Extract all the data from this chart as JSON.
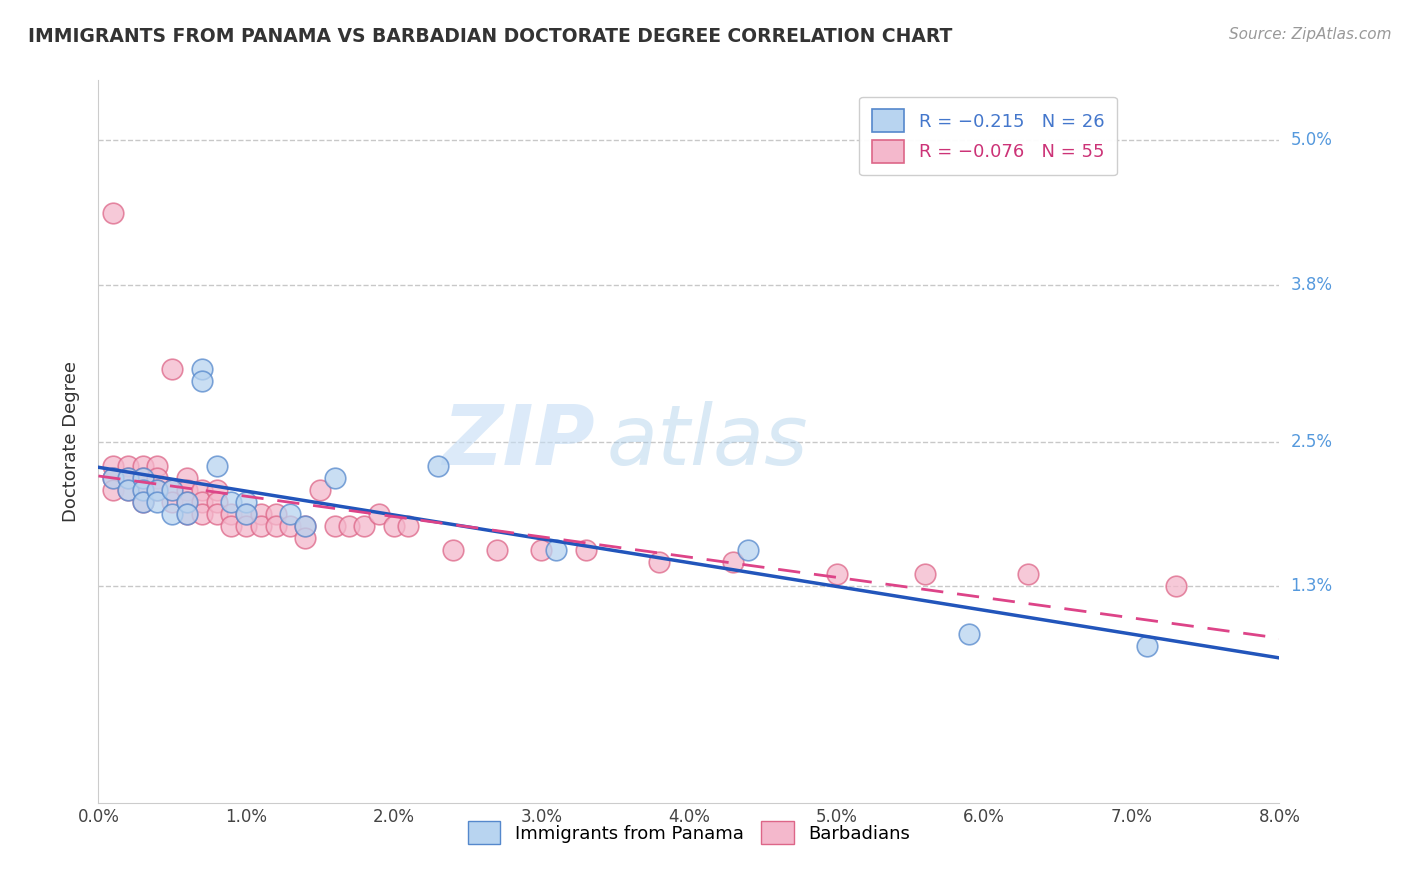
{
  "title": "IMMIGRANTS FROM PANAMA VS BARBADIAN DOCTORATE DEGREE CORRELATION CHART",
  "source": "Source: ZipAtlas.com",
  "ylabel": "Doctorate Degree",
  "xmin": 0.0,
  "xmax": 0.08,
  "ymin": -0.005,
  "ymax": 0.055,
  "ytick_labels": [
    "1.3%",
    "2.5%",
    "3.8%",
    "5.0%"
  ],
  "panama_color": "#b8d4f0",
  "barbadian_color": "#f4b8cc",
  "panama_edge_color": "#5588cc",
  "barbadian_edge_color": "#dd6688",
  "panama_line_color": "#2255bb",
  "barbadian_line_color": "#dd4488",
  "panama_points": [
    [
      0.001,
      0.022
    ],
    [
      0.002,
      0.022
    ],
    [
      0.002,
      0.021
    ],
    [
      0.003,
      0.022
    ],
    [
      0.003,
      0.021
    ],
    [
      0.003,
      0.02
    ],
    [
      0.004,
      0.021
    ],
    [
      0.004,
      0.02
    ],
    [
      0.005,
      0.021
    ],
    [
      0.005,
      0.019
    ],
    [
      0.006,
      0.02
    ],
    [
      0.006,
      0.019
    ],
    [
      0.007,
      0.031
    ],
    [
      0.007,
      0.03
    ],
    [
      0.008,
      0.023
    ],
    [
      0.009,
      0.02
    ],
    [
      0.01,
      0.02
    ],
    [
      0.01,
      0.019
    ],
    [
      0.013,
      0.019
    ],
    [
      0.014,
      0.018
    ],
    [
      0.016,
      0.022
    ],
    [
      0.023,
      0.023
    ],
    [
      0.031,
      0.016
    ],
    [
      0.044,
      0.016
    ],
    [
      0.059,
      0.009
    ],
    [
      0.071,
      0.008
    ]
  ],
  "barbadian_points": [
    [
      0.001,
      0.044
    ],
    [
      0.001,
      0.023
    ],
    [
      0.001,
      0.022
    ],
    [
      0.001,
      0.021
    ],
    [
      0.002,
      0.023
    ],
    [
      0.002,
      0.022
    ],
    [
      0.002,
      0.021
    ],
    [
      0.003,
      0.023
    ],
    [
      0.003,
      0.022
    ],
    [
      0.003,
      0.021
    ],
    [
      0.003,
      0.02
    ],
    [
      0.004,
      0.023
    ],
    [
      0.004,
      0.022
    ],
    [
      0.004,
      0.021
    ],
    [
      0.005,
      0.031
    ],
    [
      0.005,
      0.021
    ],
    [
      0.005,
      0.02
    ],
    [
      0.006,
      0.022
    ],
    [
      0.006,
      0.021
    ],
    [
      0.006,
      0.02
    ],
    [
      0.006,
      0.019
    ],
    [
      0.007,
      0.021
    ],
    [
      0.007,
      0.02
    ],
    [
      0.007,
      0.019
    ],
    [
      0.008,
      0.021
    ],
    [
      0.008,
      0.02
    ],
    [
      0.008,
      0.019
    ],
    [
      0.009,
      0.019
    ],
    [
      0.009,
      0.018
    ],
    [
      0.01,
      0.019
    ],
    [
      0.01,
      0.018
    ],
    [
      0.011,
      0.019
    ],
    [
      0.011,
      0.018
    ],
    [
      0.012,
      0.019
    ],
    [
      0.012,
      0.018
    ],
    [
      0.013,
      0.018
    ],
    [
      0.014,
      0.018
    ],
    [
      0.014,
      0.017
    ],
    [
      0.015,
      0.021
    ],
    [
      0.016,
      0.018
    ],
    [
      0.017,
      0.018
    ],
    [
      0.018,
      0.018
    ],
    [
      0.019,
      0.019
    ],
    [
      0.02,
      0.018
    ],
    [
      0.021,
      0.018
    ],
    [
      0.024,
      0.016
    ],
    [
      0.027,
      0.016
    ],
    [
      0.03,
      0.016
    ],
    [
      0.033,
      0.016
    ],
    [
      0.038,
      0.015
    ],
    [
      0.043,
      0.015
    ],
    [
      0.05,
      0.014
    ],
    [
      0.056,
      0.014
    ],
    [
      0.063,
      0.014
    ],
    [
      0.073,
      0.013
    ]
  ],
  "watermark_zip": "ZIP",
  "watermark_atlas": "atlas",
  "background_color": "#ffffff",
  "grid_color": "#cccccc"
}
